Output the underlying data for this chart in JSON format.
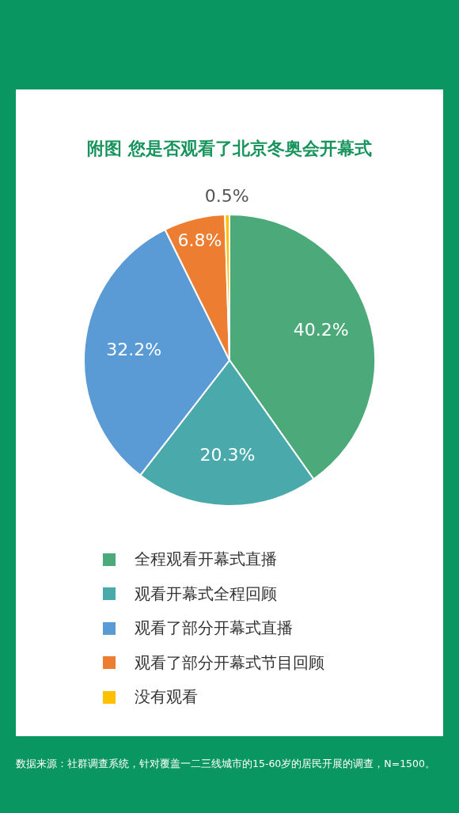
{
  "chart_data": {
    "type": "pie",
    "title": "附图 您是否观看了北京冬奥会开幕式",
    "categories": [
      "全程观看开幕式直播",
      "观看开幕式全程回顾",
      "观看了部分开幕式直播",
      "观看了部分开幕式节目回顾",
      "没有观看"
    ],
    "values": [
      40.2,
      20.3,
      32.2,
      6.8,
      0.5
    ],
    "value_labels": [
      "40.2%",
      "20.3%",
      "32.2%",
      "6.8%",
      "0.5%"
    ],
    "colors": [
      "#4caa7a",
      "#4aa9ab",
      "#5a9bd6",
      "#ed7d31",
      "#ffc000"
    ],
    "legend": "bottom",
    "annotations": [
      "数据来源：社群调查系统，针对覆盖一二三线城市的15-60岁的居民开展的调查，N=1500。"
    ]
  }
}
